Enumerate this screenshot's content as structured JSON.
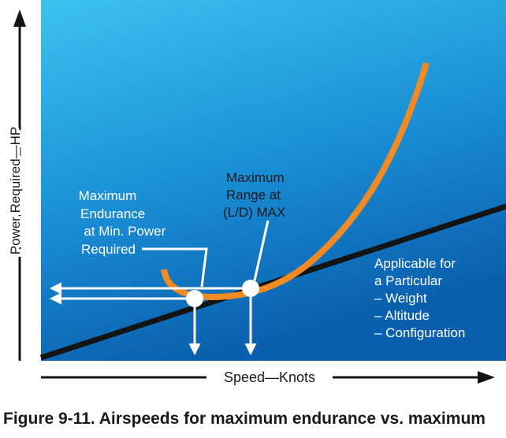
{
  "axes": {
    "y_label": "Power Required—HP",
    "x_label": "Speed—Knots"
  },
  "annotations": {
    "max_endurance": [
      "Maximum",
      "Endurance",
      "at Min. Power",
      "Required"
    ],
    "max_range": [
      "Maximum",
      "Range at",
      "(L/D) MAX"
    ],
    "applicable": [
      "Applicable for",
      "a Particular",
      "– Weight",
      "– Altitude",
      "– Configuration"
    ]
  },
  "caption": "Figure 9-11. Airspeeds for maximum endurance vs. maximum",
  "colors": {
    "panel_top": "#3cc2ef",
    "panel_bottom": "#0a63b4",
    "power_curve": "#f08a24",
    "tangent_line": "#141414",
    "marker": "#ffffff",
    "text_dark": "#1a1a1a",
    "text_light": "#ffffff"
  }
}
